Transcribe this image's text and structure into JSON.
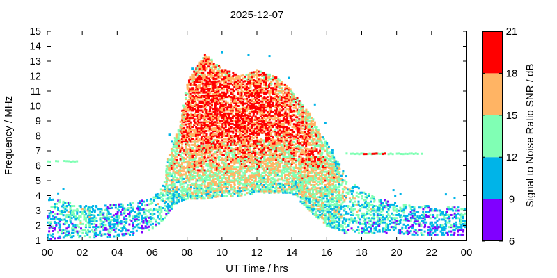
{
  "chart_data": {
    "type": "heatmap",
    "title": "2025-12-07",
    "xlabel": "UT Time / hrs",
    "ylabel": "Frequency / MHz",
    "xlim": [
      0,
      24
    ],
    "ylim": [
      1,
      15
    ],
    "x_ticks": [
      "00",
      "02",
      "04",
      "06",
      "08",
      "10",
      "12",
      "14",
      "16",
      "18",
      "20",
      "22",
      "00"
    ],
    "y_ticks": [
      "1",
      "2",
      "3",
      "4",
      "5",
      "6",
      "7",
      "8",
      "9",
      "10",
      "11",
      "12",
      "13",
      "14",
      "15"
    ],
    "colorbar": {
      "label": "Signal to Noise Ratio SNR / dB",
      "ticks": [
        "6",
        "9",
        "12",
        "15",
        "18",
        "21"
      ],
      "bands": [
        {
          "from": 6,
          "to": 9,
          "color": "#8000ff"
        },
        {
          "from": 9,
          "to": 12,
          "color": "#00b4e8"
        },
        {
          "from": 12,
          "to": 15,
          "color": "#80ffb4"
        },
        {
          "from": 15,
          "to": 18,
          "color": "#ffb464"
        },
        {
          "from": 18,
          "to": 21,
          "color": "#ff0000"
        }
      ]
    },
    "profile": {
      "hour": [
        0,
        1,
        2,
        3,
        4,
        5,
        6,
        6.5,
        7,
        7.5,
        8,
        9,
        10,
        11,
        12,
        13,
        14,
        15,
        16,
        16.5,
        17,
        18,
        19,
        20,
        21,
        22,
        23,
        24
      ],
      "fmin_MHz": [
        1.1,
        1.2,
        1.2,
        1.2,
        1.3,
        1.4,
        1.8,
        2.2,
        3.0,
        3.6,
        3.8,
        3.8,
        4.0,
        4.0,
        4.2,
        4.2,
        4.2,
        3.0,
        2.0,
        1.8,
        1.5,
        1.5,
        1.5,
        1.5,
        1.4,
        1.4,
        1.4,
        1.4
      ],
      "fmax_MHz": [
        4.0,
        3.6,
        3.4,
        3.4,
        3.4,
        3.6,
        3.8,
        4.5,
        7.0,
        8.5,
        11.5,
        13.5,
        12.5,
        12.0,
        12.4,
        12.0,
        11.0,
        9.5,
        7.5,
        6.5,
        5.5,
        4.3,
        3.8,
        3.5,
        3.4,
        3.3,
        3.3,
        3.3
      ],
      "snr_peak_dB": [
        11,
        12,
        13,
        12,
        11,
        11,
        12,
        13,
        15,
        17,
        19,
        20,
        20,
        20,
        20,
        19,
        19,
        18,
        16,
        15,
        14,
        13,
        12,
        12,
        11,
        11,
        11,
        11
      ]
    },
    "persistent_traces": [
      {
        "freq_MHz": 6.3,
        "from_hour": 0.0,
        "to_hour": 1.8,
        "snr_dB": 14
      },
      {
        "freq_MHz": 6.8,
        "from_hour": 17.0,
        "to_hour": 21.5,
        "snr_dB": 14
      },
      {
        "freq_MHz": 6.8,
        "from_hour": 18.0,
        "to_hour": 19.5,
        "snr_dB": 19
      }
    ]
  }
}
